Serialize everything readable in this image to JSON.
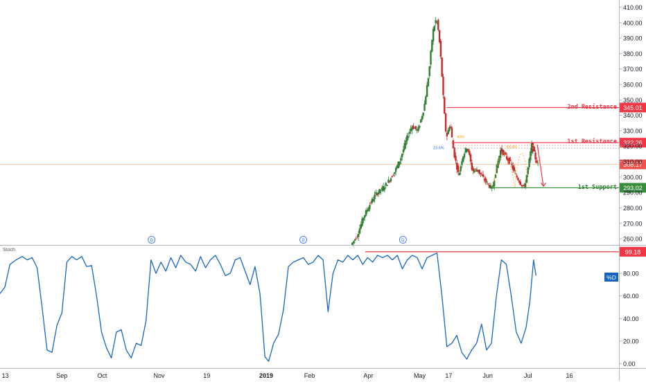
{
  "chart_data": [
    {
      "type": "candlestick",
      "ylim": [
        256,
        412
      ],
      "y_ticks": [
        260,
        270,
        280,
        290,
        300,
        310,
        320,
        330,
        340,
        350,
        360,
        370,
        380,
        390,
        400,
        410
      ],
      "y_tick_labels": [
        "260.00",
        "270.00",
        "280.00",
        "290.00",
        "300.00",
        "310.00",
        "320.00",
        "330.00",
        "340.00",
        "350.00",
        "360.00",
        "370.00",
        "380.00",
        "390.00",
        "400.00",
        "410.00"
      ],
      "trend": [
        {
          "t": 0.568,
          "v": 256
        },
        {
          "t": 0.578,
          "v": 262
        },
        {
          "t": 0.588,
          "v": 274
        },
        {
          "t": 0.598,
          "v": 282
        },
        {
          "t": 0.608,
          "v": 289
        },
        {
          "t": 0.618,
          "v": 292
        },
        {
          "t": 0.628,
          "v": 297
        },
        {
          "t": 0.638,
          "v": 303
        },
        {
          "t": 0.648,
          "v": 312
        },
        {
          "t": 0.658,
          "v": 325
        },
        {
          "t": 0.666,
          "v": 333
        },
        {
          "t": 0.676,
          "v": 330
        },
        {
          "t": 0.686,
          "v": 345
        },
        {
          "t": 0.694,
          "v": 368
        },
        {
          "t": 0.7,
          "v": 394
        },
        {
          "t": 0.706,
          "v": 403
        },
        {
          "t": 0.71,
          "v": 392
        },
        {
          "t": 0.714,
          "v": 372
        },
        {
          "t": 0.718,
          "v": 345
        },
        {
          "t": 0.722,
          "v": 325
        },
        {
          "t": 0.728,
          "v": 335
        },
        {
          "t": 0.734,
          "v": 316
        },
        {
          "t": 0.742,
          "v": 301
        },
        {
          "t": 0.748,
          "v": 313
        },
        {
          "t": 0.756,
          "v": 320
        },
        {
          "t": 0.764,
          "v": 304
        },
        {
          "t": 0.772,
          "v": 305
        },
        {
          "t": 0.78,
          "v": 300
        },
        {
          "t": 0.788,
          "v": 296
        },
        {
          "t": 0.796,
          "v": 292
        },
        {
          "t": 0.802,
          "v": 304
        },
        {
          "t": 0.81,
          "v": 318
        },
        {
          "t": 0.818,
          "v": 313
        },
        {
          "t": 0.826,
          "v": 309
        },
        {
          "t": 0.834,
          "v": 301
        },
        {
          "t": 0.842,
          "v": 296
        },
        {
          "t": 0.848,
          "v": 293
        },
        {
          "t": 0.854,
          "v": 306
        },
        {
          "t": 0.86,
          "v": 321
        },
        {
          "t": 0.866,
          "v": 312
        },
        {
          "t": 0.87,
          "v": 308
        }
      ],
      "horizontal_levels": [
        {
          "label": "2nd Resistance",
          "value": 345.01,
          "value_label": "345.01",
          "color": "#f23645",
          "from_t": 0.722
        },
        {
          "label": "1st Resistance",
          "value": 322.26,
          "value_label": "322.26",
          "color": "#f23645",
          "from_t": 0.73
        },
        {
          "label": "1st Support",
          "value": 293.02,
          "value_label": "293.02",
          "color": "#388e3c",
          "from_t": 0.8
        }
      ],
      "last_price": {
        "value": 308.17,
        "value_label": "308.17",
        "color": "#ef5350"
      },
      "fib_annotations": [
        "23.6%",
        "40%",
        "61.8%"
      ],
      "markers": [
        "D",
        "D",
        "D"
      ]
    },
    {
      "type": "line",
      "name": "Stoch",
      "series": [
        {
          "name": "%D",
          "color": "#1565c0"
        }
      ],
      "ylim": [
        -4,
        104
      ],
      "y_ticks": [
        0,
        20,
        40,
        60,
        80
      ],
      "y_tick_labels": [
        "0.00",
        "20.00",
        "40.00",
        "60.00",
        "80.00"
      ],
      "level": {
        "value": 99.18,
        "value_label": "99.18",
        "color": "#f23645"
      },
      "values": [
        [
          0.0,
          62
        ],
        [
          0.008,
          68
        ],
        [
          0.016,
          88
        ],
        [
          0.026,
          92
        ],
        [
          0.036,
          95
        ],
        [
          0.044,
          92
        ],
        [
          0.052,
          94
        ],
        [
          0.06,
          85
        ],
        [
          0.068,
          50
        ],
        [
          0.076,
          12
        ],
        [
          0.084,
          10
        ],
        [
          0.092,
          34
        ],
        [
          0.1,
          45
        ],
        [
          0.108,
          90
        ],
        [
          0.116,
          95
        ],
        [
          0.124,
          92
        ],
        [
          0.132,
          95
        ],
        [
          0.14,
          86
        ],
        [
          0.148,
          87
        ],
        [
          0.156,
          60
        ],
        [
          0.164,
          28
        ],
        [
          0.172,
          14
        ],
        [
          0.18,
          5
        ],
        [
          0.188,
          28
        ],
        [
          0.196,
          30
        ],
        [
          0.204,
          12
        ],
        [
          0.212,
          5
        ],
        [
          0.22,
          18
        ],
        [
          0.228,
          16
        ],
        [
          0.236,
          38
        ],
        [
          0.244,
          92
        ],
        [
          0.252,
          80
        ],
        [
          0.26,
          90
        ],
        [
          0.268,
          82
        ],
        [
          0.276,
          94
        ],
        [
          0.284,
          85
        ],
        [
          0.292,
          96
        ],
        [
          0.3,
          90
        ],
        [
          0.308,
          88
        ],
        [
          0.316,
          82
        ],
        [
          0.324,
          95
        ],
        [
          0.332,
          85
        ],
        [
          0.34,
          92
        ],
        [
          0.348,
          96
        ],
        [
          0.356,
          88
        ],
        [
          0.364,
          78
        ],
        [
          0.372,
          80
        ],
        [
          0.38,
          92
        ],
        [
          0.388,
          94
        ],
        [
          0.396,
          82
        ],
        [
          0.404,
          70
        ],
        [
          0.412,
          86
        ],
        [
          0.42,
          62
        ],
        [
          0.428,
          6
        ],
        [
          0.434,
          2
        ],
        [
          0.442,
          18
        ],
        [
          0.45,
          26
        ],
        [
          0.458,
          48
        ],
        [
          0.466,
          86
        ],
        [
          0.474,
          90
        ],
        [
          0.482,
          92
        ],
        [
          0.49,
          94
        ],
        [
          0.498,
          88
        ],
        [
          0.506,
          90
        ],
        [
          0.514,
          96
        ],
        [
          0.522,
          92
        ],
        [
          0.53,
          46
        ],
        [
          0.538,
          80
        ],
        [
          0.546,
          92
        ],
        [
          0.554,
          90
        ],
        [
          0.562,
          96
        ],
        [
          0.57,
          92
        ],
        [
          0.578,
          96
        ],
        [
          0.586,
          88
        ],
        [
          0.594,
          94
        ],
        [
          0.602,
          90
        ],
        [
          0.61,
          96
        ],
        [
          0.618,
          94
        ],
        [
          0.626,
          96
        ],
        [
          0.634,
          92
        ],
        [
          0.642,
          96
        ],
        [
          0.65,
          84
        ],
        [
          0.658,
          92
        ],
        [
          0.666,
          96
        ],
        [
          0.674,
          94
        ],
        [
          0.682,
          84
        ],
        [
          0.69,
          94
        ],
        [
          0.698,
          96
        ],
        [
          0.706,
          98
        ],
        [
          0.714,
          60
        ],
        [
          0.722,
          15
        ],
        [
          0.73,
          18
        ],
        [
          0.738,
          25
        ],
        [
          0.746,
          10
        ],
        [
          0.754,
          4
        ],
        [
          0.762,
          12
        ],
        [
          0.77,
          18
        ],
        [
          0.778,
          35
        ],
        [
          0.786,
          12
        ],
        [
          0.794,
          18
        ],
        [
          0.802,
          60
        ],
        [
          0.81,
          92
        ],
        [
          0.818,
          88
        ],
        [
          0.826,
          60
        ],
        [
          0.834,
          28
        ],
        [
          0.842,
          18
        ],
        [
          0.85,
          32
        ],
        [
          0.856,
          55
        ],
        [
          0.862,
          92
        ],
        [
          0.866,
          78
        ]
      ]
    }
  ],
  "x_axis": {
    "labels": [
      "13",
      "Sep",
      "Oct",
      "Nov",
      "19",
      "2019",
      "Feb",
      "Apr",
      "May",
      "17",
      "Jun",
      "Jul",
      "16"
    ],
    "label_t": [
      0.003,
      0.1,
      0.165,
      0.257,
      0.334,
      0.43,
      0.5,
      0.595,
      0.678,
      0.725,
      0.788,
      0.853,
      0.92
    ]
  },
  "annotations": {
    "stoch_label": "Stoch",
    "pct_d_badge": "%D",
    "resistance2_label": "2nd Resistance",
    "resistance1_label": "1st Resistance",
    "support1_label": "1st Support"
  },
  "colors": {
    "up": "#26a69a",
    "down": "#ef5350",
    "candle_up": "#2e7d32",
    "candle_down": "#c62828",
    "stoch_line": "#1565c0",
    "axis_text": "#131722",
    "grid_sep": "#b2b5be",
    "price_line": "#f5c9a8",
    "arrow": "#f23645",
    "marker": "#2962ff"
  }
}
